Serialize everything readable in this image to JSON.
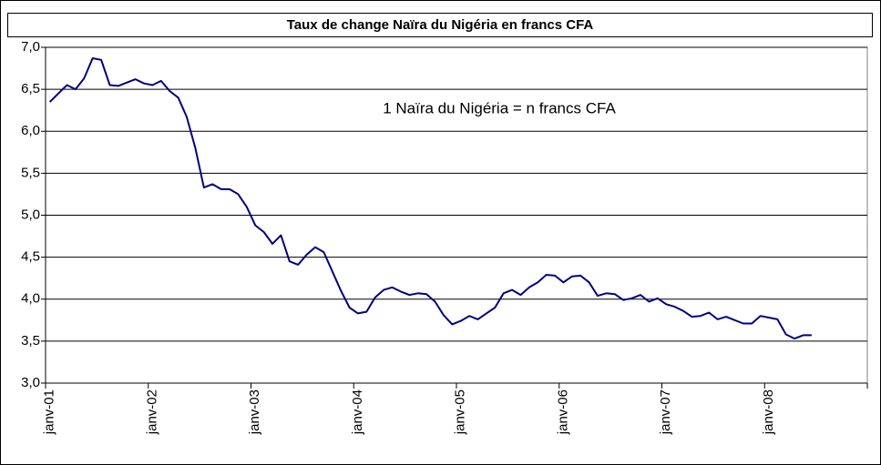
{
  "chart_data": {
    "type": "line",
    "title": "Taux de change Naïra du Nigéria en francs CFA",
    "annotation": "1 Naïra du Nigéria = n francs CFA",
    "categories": [
      "janv-01",
      null,
      null,
      null,
      null,
      null,
      null,
      null,
      null,
      null,
      null,
      null,
      "janv-02",
      null,
      null,
      null,
      null,
      null,
      null,
      null,
      null,
      null,
      null,
      null,
      "janv-03",
      null,
      null,
      null,
      null,
      null,
      null,
      null,
      null,
      null,
      null,
      null,
      "janv-04",
      null,
      null,
      null,
      null,
      null,
      null,
      null,
      null,
      null,
      null,
      null,
      "janv-05",
      null,
      null,
      null,
      null,
      null,
      null,
      null,
      null,
      null,
      null,
      null,
      "janv-06",
      null,
      null,
      null,
      null,
      null,
      null,
      null,
      null,
      null,
      null,
      null,
      "janv-07",
      null,
      null,
      null,
      null,
      null,
      null,
      null,
      null,
      null,
      null,
      null,
      "janv-08",
      null,
      null,
      null,
      null,
      null,
      null,
      null,
      null,
      null,
      null,
      null
    ],
    "series": [
      {
        "color": "#000080",
        "values": [
          6.35,
          6.45,
          6.55,
          6.5,
          6.63,
          6.87,
          6.85,
          6.55,
          6.54,
          6.58,
          6.62,
          6.57,
          6.55,
          6.6,
          6.48,
          6.4,
          6.17,
          5.8,
          5.33,
          5.37,
          5.31,
          5.31,
          5.25,
          5.1,
          4.88,
          4.8,
          4.66,
          4.76,
          4.45,
          4.41,
          4.53,
          4.62,
          4.56,
          4.33,
          4.1,
          3.9,
          3.83,
          3.85,
          4.02,
          4.11,
          4.14,
          4.09,
          4.05,
          4.07,
          4.06,
          3.97,
          3.81,
          3.7,
          3.74,
          3.8,
          3.76,
          3.83,
          3.9,
          4.07,
          4.11,
          4.05,
          4.14,
          4.2,
          4.29,
          4.28,
          4.2,
          4.27,
          4.28,
          4.2,
          4.04,
          4.07,
          4.06,
          3.99,
          4.01,
          4.05,
          3.97,
          4.01,
          3.94,
          3.91,
          3.86,
          3.79,
          3.8,
          3.84,
          3.76,
          3.79,
          3.75,
          3.71,
          3.71,
          3.8,
          3.78,
          3.76,
          3.58,
          3.53,
          3.57,
          3.57,
          null,
          null,
          null,
          null,
          null,
          null
        ]
      }
    ],
    "ylim": [
      3.0,
      7.0
    ],
    "yticks": [
      {
        "value": 3.0,
        "label": "3,0"
      },
      {
        "value": 3.5,
        "label": "3,5"
      },
      {
        "value": 4.0,
        "label": "4,0"
      },
      {
        "value": 4.5,
        "label": "4,5"
      },
      {
        "value": 5.0,
        "label": "5,0"
      },
      {
        "value": 5.5,
        "label": "5,5"
      },
      {
        "value": 6.0,
        "label": "6,0"
      },
      {
        "value": 6.5,
        "label": "6,5"
      },
      {
        "value": 7.0,
        "label": "7,0"
      }
    ],
    "grid": true
  }
}
